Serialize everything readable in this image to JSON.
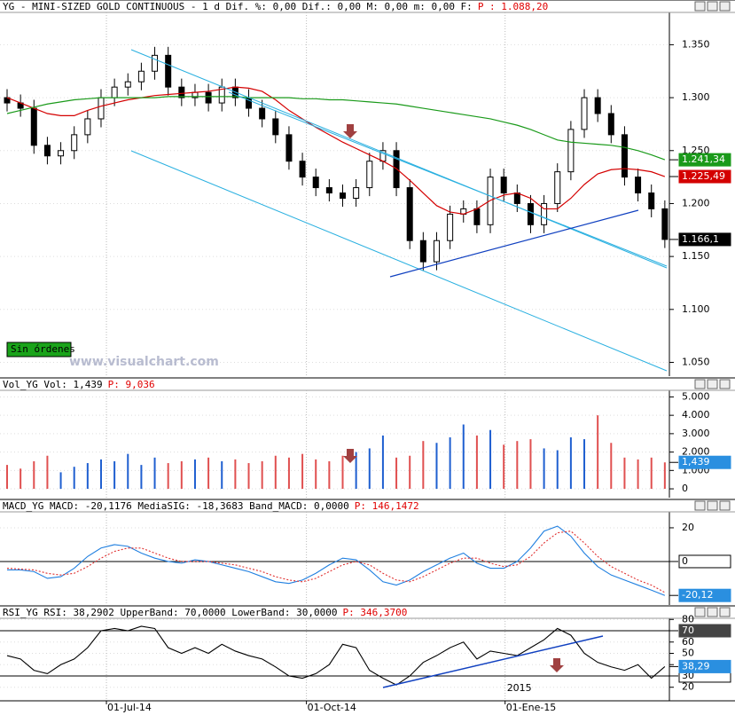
{
  "chart_data": [
    {
      "type": "candlestick",
      "title": "YG - MINI-SIZED GOLD CONTINUOUS -  1 d Dif. %: 0,00 Dif.: 0,00 M: 0,00 m: 0,00 F:",
      "title_extra": "P : 1.088,20",
      "open": [
        1300,
        1295,
        1290,
        1255,
        1245,
        1250,
        1265,
        1280,
        1300,
        1310,
        1315,
        1325,
        1340,
        1310,
        1300,
        1305,
        1295,
        1310,
        1300,
        1290,
        1280,
        1265,
        1240,
        1225,
        1215,
        1210,
        1205,
        1215,
        1240,
        1250,
        1215,
        1165,
        1145,
        1165,
        1190,
        1195,
        1180,
        1225,
        1210,
        1200,
        1180,
        1200,
        1230,
        1270,
        1300,
        1285,
        1265,
        1225,
        1210,
        1195
      ],
      "high": [
        1308,
        1303,
        1298,
        1263,
        1258,
        1273,
        1288,
        1308,
        1318,
        1323,
        1333,
        1348,
        1348,
        1318,
        1313,
        1313,
        1318,
        1318,
        1308,
        1298,
        1288,
        1273,
        1248,
        1233,
        1223,
        1218,
        1223,
        1248,
        1258,
        1258,
        1223,
        1173,
        1173,
        1198,
        1203,
        1203,
        1233,
        1233,
        1218,
        1208,
        1208,
        1238,
        1278,
        1308,
        1308,
        1293,
        1273,
        1233,
        1218,
        1203
      ],
      "low": [
        1287,
        1282,
        1247,
        1237,
        1237,
        1242,
        1257,
        1272,
        1292,
        1302,
        1307,
        1317,
        1302,
        1292,
        1292,
        1287,
        1287,
        1292,
        1282,
        1272,
        1257,
        1232,
        1217,
        1207,
        1202,
        1197,
        1197,
        1207,
        1232,
        1207,
        1157,
        1137,
        1137,
        1157,
        1182,
        1172,
        1172,
        1202,
        1192,
        1172,
        1172,
        1192,
        1222,
        1262,
        1277,
        1257,
        1217,
        1202,
        1187,
        1158
      ],
      "close": [
        1295,
        1290,
        1255,
        1245,
        1250,
        1265,
        1280,
        1300,
        1310,
        1315,
        1325,
        1340,
        1310,
        1300,
        1305,
        1295,
        1310,
        1300,
        1290,
        1280,
        1265,
        1240,
        1225,
        1215,
        1210,
        1205,
        1215,
        1240,
        1250,
        1215,
        1165,
        1145,
        1165,
        1190,
        1195,
        1180,
        1225,
        1210,
        1200,
        1180,
        1200,
        1230,
        1270,
        1300,
        1285,
        1265,
        1225,
        1210,
        1195,
        1166.1
      ],
      "lines": [
        {
          "color": "#d40000",
          "values": [
            1300,
            1295,
            1290,
            1285,
            1283,
            1283,
            1288,
            1292,
            1295,
            1298,
            1300,
            1302,
            1303,
            1304,
            1305,
            1306,
            1308,
            1310,
            1309,
            1306,
            1298,
            1288,
            1280,
            1272,
            1265,
            1258,
            1252,
            1246,
            1240,
            1233,
            1222,
            1210,
            1198,
            1192,
            1190,
            1195,
            1203,
            1208,
            1210,
            1205,
            1195,
            1195,
            1205,
            1218,
            1228,
            1232,
            1233,
            1232,
            1230,
            1225.49
          ]
        },
        {
          "color": "#1a9a1a",
          "values": [
            1285,
            1288,
            1291,
            1294,
            1296,
            1298,
            1299,
            1300,
            1300,
            1300,
            1300,
            1300,
            1301,
            1301,
            1301,
            1301,
            1301,
            1301,
            1300,
            1300,
            1300,
            1300,
            1299,
            1299,
            1298,
            1298,
            1297,
            1296,
            1295,
            1294,
            1292,
            1290,
            1288,
            1286,
            1284,
            1282,
            1280,
            1277,
            1274,
            1270,
            1265,
            1260,
            1258,
            1257,
            1256,
            1255,
            1253,
            1250,
            1246,
            1241.34
          ]
        }
      ],
      "ylim": [
        1037,
        1378
      ],
      "yticks": [
        {
          "value": 1350,
          "label": "1.350"
        },
        {
          "value": 1300,
          "label": "1.300"
        },
        {
          "value": 1250,
          "label": "1.250"
        },
        {
          "value": 1200,
          "label": "1.200"
        },
        {
          "value": 1150,
          "label": "1.150"
        },
        {
          "value": 1100,
          "label": "1.100"
        },
        {
          "value": 1050,
          "label": "1.050"
        }
      ],
      "markers": [
        {
          "value": 1241.34,
          "label": "1.241,34",
          "color": "#1a9a1a"
        },
        {
          "value": 1225.49,
          "label": "1.225,49",
          "color": "#d40000"
        },
        {
          "value": 1166.1,
          "label": "1.166,1",
          "color": "#000000"
        }
      ],
      "badge": "Sin órdenes",
      "watermark": "www.visualchart.com"
    },
    {
      "type": "bar",
      "title": "Vol_YG Vol: 1,439",
      "title_extra": "P: 9,036",
      "values": [
        1300,
        1100,
        1500,
        1800,
        900,
        1200,
        1400,
        1600,
        1500,
        1900,
        1300,
        1700,
        1400,
        1500,
        1600,
        1700,
        1500,
        1600,
        1400,
        1500,
        1800,
        1700,
        1900,
        1600,
        1500,
        1800,
        2000,
        2200,
        2900,
        1700,
        1800,
        2600,
        2500,
        2800,
        3500,
        2900,
        3200,
        2400,
        2600,
        2700,
        2200,
        2100,
        2800,
        2700,
        4000,
        2500,
        1700,
        1600,
        1700,
        1439
      ],
      "colors": {
        "up": "#1f5fd0",
        "down": "#e05050"
      },
      "ylim": [
        -480,
        5310
      ],
      "yticks": [
        0,
        {
          "value": 1000,
          "label": "1.000"
        },
        {
          "value": 2000,
          "label": "2.000"
        },
        {
          "value": 3000,
          "label": "3.000"
        },
        {
          "value": 4000,
          "label": "4.000"
        },
        {
          "value": 5000,
          "label": "5.000"
        }
      ],
      "markers": [
        {
          "value": 1439,
          "label": "1,439",
          "color": "#2a8fe0"
        }
      ]
    },
    {
      "type": "line",
      "title": "MACD_YG MACD: -20,1176 MediaSIG: -18,3683 Band_MACD: 0,0000",
      "title_extra": "P: 146,1472",
      "series": [
        {
          "color": "#1f7fe0",
          "values": [
            -5,
            -5,
            -6,
            -10,
            -9,
            -4,
            3,
            8,
            10,
            9,
            5,
            2,
            0,
            -1,
            1,
            0,
            -2,
            -4,
            -6,
            -9,
            -12,
            -13,
            -11,
            -7,
            -2,
            2,
            1,
            -5,
            -12,
            -14,
            -11,
            -6,
            -2,
            2,
            5,
            -1,
            -4,
            -4,
            0,
            8,
            18,
            21,
            15,
            5,
            -3,
            -8,
            -11,
            -14,
            -17,
            -20.12
          ]
        },
        {
          "color": "#e03030",
          "dashed": true,
          "values": [
            -4,
            -4.5,
            -5,
            -7,
            -8,
            -7,
            -3,
            2,
            6,
            8,
            8,
            5,
            2,
            0,
            0,
            0,
            -1,
            -2,
            -4,
            -6,
            -9,
            -11,
            -12,
            -10,
            -6,
            -2,
            0,
            -2,
            -7,
            -11,
            -12,
            -9,
            -5,
            -1,
            2,
            2,
            -1,
            -3,
            -2,
            3,
            11,
            17,
            18,
            11,
            3,
            -3,
            -7,
            -11,
            -14,
            -18.3683
          ]
        }
      ],
      "hlines": [
        0
      ],
      "ylim": [
        -25.8,
        28.4
      ],
      "yticks": [
        20
      ],
      "markers": [
        {
          "value": 0,
          "label": "0",
          "color": "#ffffff"
        },
        {
          "value": -20.12,
          "label": "-20,12",
          "color": "#2a8fe0"
        }
      ]
    },
    {
      "type": "line",
      "title": "RSI_YG RSI: 38,2902 UpperBand: 70,0000 LowerBand: 30,0000",
      "title_extra": "P: 346,3700",
      "series": [
        {
          "color": "#000000",
          "values": [
            48,
            45,
            35,
            32,
            40,
            45,
            55,
            70,
            72,
            70,
            74,
            72,
            55,
            50,
            55,
            50,
            58,
            52,
            48,
            45,
            38,
            30,
            28,
            32,
            40,
            58,
            55,
            35,
            28,
            22,
            30,
            42,
            48,
            55,
            60,
            45,
            52,
            50,
            48,
            55,
            62,
            72,
            66,
            50,
            42,
            38,
            35,
            40,
            28,
            38.29
          ]
        }
      ],
      "hlines": [
        70,
        30
      ],
      "ylim": [
        8,
        81
      ],
      "yticks": [
        80,
        60,
        50,
        40,
        20
      ],
      "markers": [
        {
          "value": 70,
          "label": "70",
          "color": "#444444"
        },
        {
          "value": 30,
          "label": "30",
          "color": "#ffffff"
        },
        {
          "value": 38.29,
          "label": "38,29",
          "color": "#2a8fe0"
        }
      ],
      "note": "2015"
    }
  ],
  "x_axis": {
    "ticks": [
      {
        "value": 7.4,
        "label": "01-Jul-14"
      },
      {
        "value": 22.3,
        "label": "01-Oct-14"
      },
      {
        "value": 37.1,
        "label": "01-Ene-15"
      }
    ]
  }
}
